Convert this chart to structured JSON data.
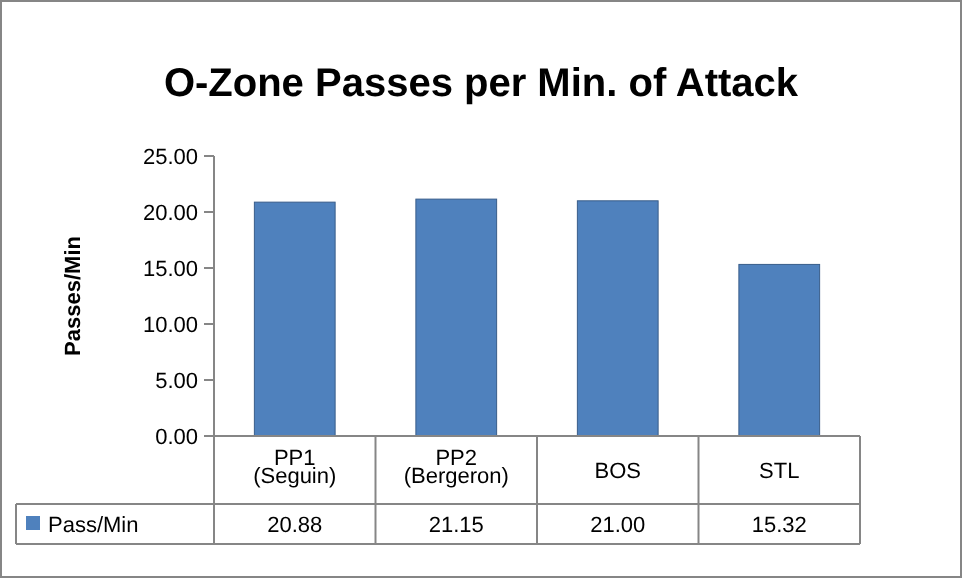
{
  "chart_data": {
    "type": "bar",
    "title": "O-Zone Passes per Min. of Attack",
    "ylabel": "Passes/Min",
    "categories": [
      "PP1 (Seguin)",
      "PP2 (Bergeron)",
      "BOS",
      "STL"
    ],
    "series": [
      {
        "name": "Pass/Min",
        "color": "#4f81bd",
        "values": [
          20.88,
          21.15,
          21.0,
          15.32
        ],
        "value_labels": [
          "20.88",
          "21.15",
          "21.00",
          "15.32"
        ]
      }
    ],
    "ylim": [
      0,
      25
    ],
    "yticks": [
      {
        "value": 0,
        "label": "0.00"
      },
      {
        "value": 5,
        "label": "5.00"
      },
      {
        "value": 10,
        "label": "10.00"
      },
      {
        "value": 15,
        "label": "15.00"
      },
      {
        "value": 20,
        "label": "20.00"
      },
      {
        "value": 25,
        "label": "25.00"
      }
    ],
    "legend": "bottom"
  }
}
